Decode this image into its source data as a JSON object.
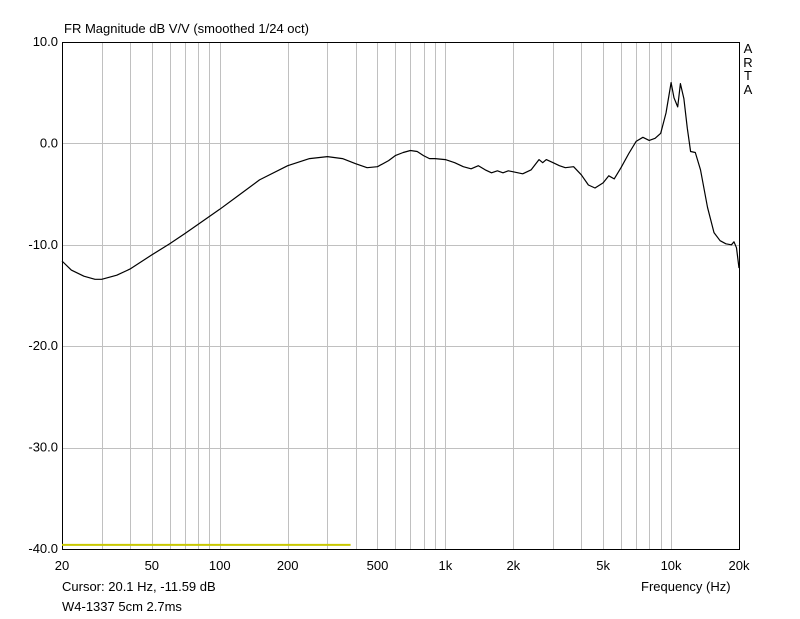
{
  "chart_data": {
    "type": "line",
    "title": "FR Magnitude dB V/V (smoothed 1/24 oct)",
    "xlabel": "Frequency (Hz)",
    "ylabel": "",
    "xscale": "log",
    "xlim": [
      20,
      20000
    ],
    "ylim": [
      -40,
      10
    ],
    "grid": true,
    "x_ticks": [
      20,
      50,
      100,
      200,
      500,
      1000,
      2000,
      5000,
      10000,
      20000
    ],
    "x_tick_labels": [
      "20",
      "50",
      "100",
      "200",
      "500",
      "1k",
      "2k",
      "5k",
      "10k",
      "20k"
    ],
    "y_ticks": [
      10,
      0,
      -10,
      -20,
      -30,
      -40
    ],
    "y_tick_labels": [
      "10.0",
      "0.0",
      "-10.0",
      "-20.0",
      "-30.0",
      "-40.0"
    ],
    "series": [
      {
        "color": "#000000",
        "x": [
          20,
          22,
          25,
          28,
          30,
          35,
          40,
          50,
          60,
          70,
          80,
          100,
          120,
          150,
          200,
          250,
          300,
          350,
          400,
          450,
          500,
          560,
          600,
          650,
          700,
          750,
          800,
          850,
          900,
          1000,
          1100,
          1200,
          1300,
          1400,
          1500,
          1600,
          1700,
          1800,
          1900,
          2000,
          2200,
          2400,
          2600,
          2700,
          2800,
          3000,
          3200,
          3400,
          3700,
          4000,
          4300,
          4600,
          5000,
          5300,
          5600,
          6000,
          6500,
          7000,
          7500,
          8000,
          8500,
          9000,
          9500,
          10000,
          10300,
          10700,
          11000,
          11400,
          11800,
          12200,
          12800,
          13500,
          14500,
          15500,
          16500,
          17500,
          18500,
          19000,
          19500,
          20000
        ],
        "y": [
          -11.6,
          -12.5,
          -13.1,
          -13.4,
          -13.4,
          -13.0,
          -12.4,
          -11.0,
          -9.9,
          -8.9,
          -8.0,
          -6.5,
          -5.2,
          -3.6,
          -2.2,
          -1.5,
          -1.3,
          -1.5,
          -2.0,
          -2.4,
          -2.3,
          -1.7,
          -1.2,
          -0.9,
          -0.7,
          -0.8,
          -1.2,
          -1.5,
          -1.5,
          -1.6,
          -1.9,
          -2.3,
          -2.5,
          -2.2,
          -2.6,
          -2.9,
          -2.7,
          -2.9,
          -2.7,
          -2.8,
          -3.0,
          -2.6,
          -1.6,
          -1.9,
          -1.6,
          -1.9,
          -2.2,
          -2.4,
          -2.3,
          -3.1,
          -4.1,
          -4.4,
          -3.9,
          -3.2,
          -3.5,
          -2.4,
          -1.0,
          0.2,
          0.6,
          0.3,
          0.5,
          1.0,
          3.0,
          6.0,
          4.5,
          3.6,
          5.9,
          4.4,
          1.5,
          -0.8,
          -0.9,
          -2.6,
          -6.3,
          -8.8,
          -9.6,
          -9.9,
          -10.0,
          -9.7,
          -10.3,
          -12.3
        ]
      },
      {
        "color": "#c8c800",
        "x": [
          20,
          380
        ],
        "y": [
          -39.6,
          -39.6
        ]
      }
    ]
  },
  "brand": [
    "A",
    "R",
    "T",
    "A"
  ],
  "status": {
    "cursor": "Cursor: 20.1 Hz, -11.59 dB",
    "measurement": "W4-1337 5cm 2.7ms"
  }
}
